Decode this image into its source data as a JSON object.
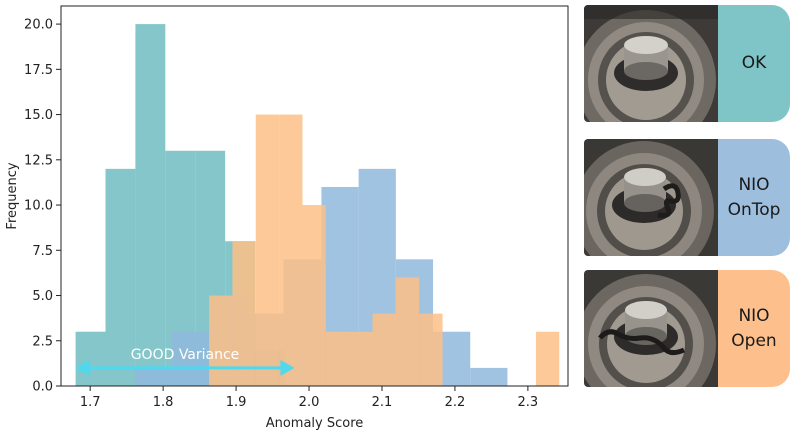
{
  "chart_data": {
    "type": "bar",
    "title": "",
    "xlabel": "Anomaly Score",
    "ylabel": "Frequency",
    "xlim": [
      1.66,
      2.355
    ],
    "ylim": [
      0,
      21
    ],
    "xticks": [
      "1.7",
      "1.8",
      "1.9",
      "2.0",
      "2.1",
      "2.2",
      "2.3"
    ],
    "yticks": [
      "0.0",
      "2.5",
      "5.0",
      "7.5",
      "10.0",
      "12.5",
      "15.0",
      "17.5",
      "20.0"
    ],
    "grid": false,
    "series": [
      {
        "color": "#6fbcc0",
        "bins": [
          {
            "x0": 1.68,
            "x1": 1.721,
            "count": 3
          },
          {
            "x0": 1.721,
            "x1": 1.762,
            "count": 12
          },
          {
            "x0": 1.762,
            "x1": 1.803,
            "count": 20
          },
          {
            "x0": 1.803,
            "x1": 1.844,
            "count": 13
          },
          {
            "x0": 1.844,
            "x1": 1.885,
            "count": 13
          },
          {
            "x0": 1.885,
            "x1": 1.926,
            "count": 8
          },
          {
            "x0": 1.926,
            "x1": 1.967,
            "count": 2
          }
        ]
      },
      {
        "color": "#8fb8dc",
        "bins": [
          {
            "x0": 1.761,
            "x1": 1.812,
            "count": 1
          },
          {
            "x0": 1.812,
            "x1": 1.863,
            "count": 3
          },
          {
            "x0": 1.863,
            "x1": 1.914,
            "count": 5
          },
          {
            "x0": 1.914,
            "x1": 1.965,
            "count": 4
          },
          {
            "x0": 1.965,
            "x1": 2.017,
            "count": 7
          },
          {
            "x0": 2.017,
            "x1": 2.068,
            "count": 11
          },
          {
            "x0": 2.068,
            "x1": 2.119,
            "count": 12
          },
          {
            "x0": 2.119,
            "x1": 2.17,
            "count": 7
          },
          {
            "x0": 2.17,
            "x1": 2.221,
            "count": 3
          },
          {
            "x0": 2.221,
            "x1": 2.272,
            "count": 1
          }
        ]
      },
      {
        "color": "#fdbf86",
        "bins": [
          {
            "x0": 1.863,
            "x1": 1.895,
            "count": 5
          },
          {
            "x0": 1.895,
            "x1": 1.927,
            "count": 8
          },
          {
            "x0": 1.927,
            "x1": 1.959,
            "count": 15
          },
          {
            "x0": 1.959,
            "x1": 1.991,
            "count": 15
          },
          {
            "x0": 1.991,
            "x1": 2.023,
            "count": 10
          },
          {
            "x0": 2.023,
            "x1": 2.055,
            "count": 3
          },
          {
            "x0": 2.055,
            "x1": 2.087,
            "count": 3
          },
          {
            "x0": 2.087,
            "x1": 2.119,
            "count": 4
          },
          {
            "x0": 2.119,
            "x1": 2.151,
            "count": 6
          },
          {
            "x0": 2.151,
            "x1": 2.183,
            "count": 4
          },
          {
            "x0": 2.183,
            "x1": 2.215,
            "count": 0
          },
          {
            "x0": 2.215,
            "x1": 2.247,
            "count": 0
          },
          {
            "x0": 2.247,
            "x1": 2.279,
            "count": 0
          },
          {
            "x0": 2.279,
            "x1": 2.311,
            "count": 0
          },
          {
            "x0": 2.311,
            "x1": 2.343,
            "count": 3
          }
        ]
      }
    ],
    "annotation": {
      "text": "GOOD Variance",
      "x_from": 1.68,
      "x_to": 1.98,
      "y": 1.0,
      "color": "#4fd8ee"
    }
  },
  "samples": [
    {
      "label": "OK",
      "color": "#7fc4c6"
    },
    {
      "label": "NIO\nOnTop",
      "color": "#9dbedc"
    },
    {
      "label": "NIO\nOpen",
      "color": "#fdc08c"
    }
  ]
}
